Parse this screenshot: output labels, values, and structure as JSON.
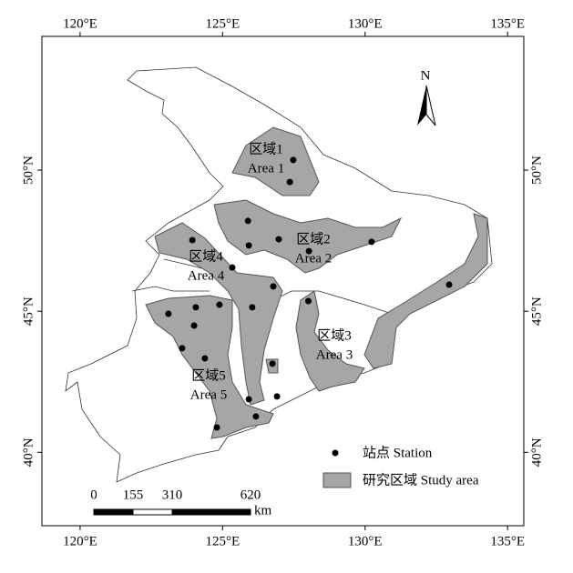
{
  "map": {
    "xlim": [
      118.66,
      135.57
    ],
    "ylim": [
      37.4,
      54.74
    ],
    "xticks": [
      {
        "value": 120,
        "label": "120°E"
      },
      {
        "value": 125,
        "label": "125°E"
      },
      {
        "value": 130,
        "label": "130°E"
      },
      {
        "value": 135,
        "label": "135°E"
      }
    ],
    "yticks": [
      {
        "value": 40,
        "label": "40°N"
      },
      {
        "value": 45,
        "label": "45°N"
      },
      {
        "value": 50,
        "label": "50°N"
      }
    ],
    "north": "N",
    "areas": [
      {
        "name_cn": "区域1",
        "name_en": "Area 1"
      },
      {
        "name_cn": "区域2",
        "name_en": "Area 2"
      },
      {
        "name_cn": "区域3",
        "name_en": "Area 3"
      },
      {
        "name_cn": "区域4",
        "name_en": "Area 4"
      },
      {
        "name_cn": "区域5",
        "name_en": "Area 5"
      }
    ],
    "stations": {
      "lon": [
        127.48,
        127.36,
        125.89,
        126.97,
        125.92,
        128.03,
        130.23,
        123.94,
        125.34,
        132.95,
        126.78,
        128.01,
        124.89,
        124.06,
        123.1,
        126.04,
        124.0,
        123.58,
        124.38,
        126.75,
        125.92,
        126.91,
        126.17,
        124.8
      ],
      "lat": [
        50.36,
        49.58,
        48.2,
        47.55,
        47.33,
        47.13,
        47.46,
        47.52,
        46.55,
        45.94,
        45.88,
        45.36,
        45.23,
        45.14,
        44.91,
        45.14,
        44.49,
        43.69,
        43.33,
        43.14,
        41.88,
        41.98,
        41.27,
        40.88
      ]
    },
    "legend": [
      {
        "label": "站点 Station"
      },
      {
        "label": "研究区域 Study area"
      }
    ],
    "scale_bar": {
      "ticks": [
        0,
        155,
        310,
        620
      ],
      "unit": "km"
    }
  }
}
